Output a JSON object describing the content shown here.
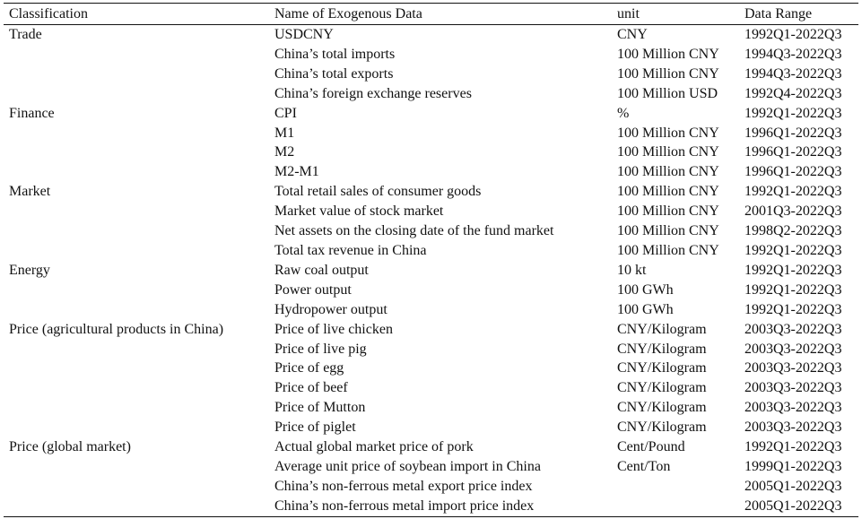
{
  "table": {
    "headers": [
      "Classification",
      "Name of Exogenous Data",
      "unit",
      "Data Range"
    ],
    "rows": [
      [
        "Trade",
        "USDCNY",
        "CNY",
        "1992Q1-2022Q3"
      ],
      [
        "",
        "China’s total imports",
        "100 Million CNY",
        "1994Q3-2022Q3"
      ],
      [
        "",
        "China’s total exports",
        "100 Million CNY",
        "1994Q3-2022Q3"
      ],
      [
        "",
        "China’s foreign exchange reserves",
        "100 Million USD",
        "1992Q4-2022Q3"
      ],
      [
        "Finance",
        "CPI",
        "%",
        "1992Q1-2022Q3"
      ],
      [
        "",
        "M1",
        "100 Million CNY",
        "1996Q1-2022Q3"
      ],
      [
        "",
        "M2",
        "100 Million CNY",
        "1996Q1-2022Q3"
      ],
      [
        "",
        "M2-M1",
        "100 Million CNY",
        "1996Q1-2022Q3"
      ],
      [
        "Market",
        "Total retail sales of consumer goods",
        "100 Million CNY",
        "1992Q1-2022Q3"
      ],
      [
        "",
        "Market value of stock market",
        "100 Million CNY",
        "2001Q3-2022Q3"
      ],
      [
        "",
        "Net assets on the closing date of the fund market",
        "100 Million CNY",
        "1998Q2-2022Q3"
      ],
      [
        "",
        "Total tax revenue in China",
        "100 Million CNY",
        "1992Q1-2022Q3"
      ],
      [
        "Energy",
        "Raw coal output",
        "10 kt",
        "1992Q1-2022Q3"
      ],
      [
        "",
        "Power output",
        "100 GWh",
        "1992Q1-2022Q3"
      ],
      [
        "",
        "Hydropower output",
        "100 GWh",
        "1992Q1-2022Q3"
      ],
      [
        "Price (agricultural products in China)",
        "Price of live chicken",
        "CNY/Kilogram",
        "2003Q3-2022Q3"
      ],
      [
        "",
        "Price of live pig",
        "CNY/Kilogram",
        "2003Q3-2022Q3"
      ],
      [
        "",
        "Price of egg",
        "CNY/Kilogram",
        "2003Q3-2022Q3"
      ],
      [
        "",
        "Price of beef",
        "CNY/Kilogram",
        "2003Q3-2022Q3"
      ],
      [
        "",
        "Price of Mutton",
        "CNY/Kilogram",
        "2003Q3-2022Q3"
      ],
      [
        "",
        "Price of piglet",
        "CNY/Kilogram",
        "2003Q3-2022Q3"
      ],
      [
        "Price (global market)",
        "Actual global market price of pork",
        "Cent/Pound",
        "1992Q1-2022Q3"
      ],
      [
        "",
        "Average unit price of soybean import in China",
        "Cent/Ton",
        "1999Q1-2022Q3"
      ],
      [
        "",
        "China’s non-ferrous metal export price index",
        "",
        "2005Q1-2022Q3"
      ],
      [
        "",
        "China’s non-ferrous metal import price index",
        "",
        "2005Q1-2022Q3"
      ]
    ]
  }
}
